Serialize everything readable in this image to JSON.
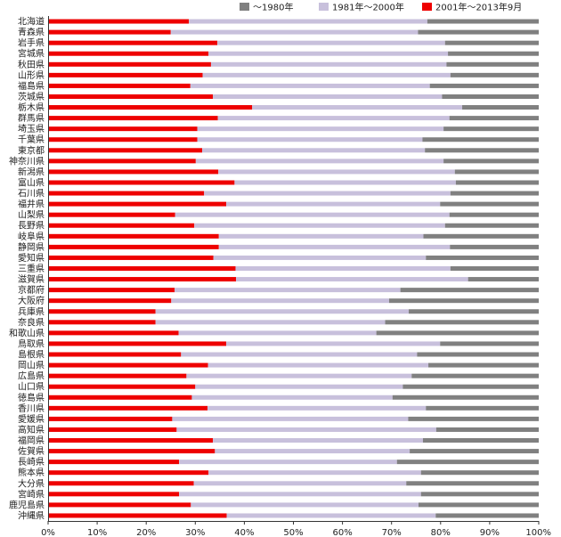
{
  "chart_data": {
    "type": "bar",
    "orientation": "horizontal",
    "stacked": true,
    "normalized_percent": true,
    "xlim": [
      0,
      100
    ],
    "x_ticks": [
      "0%",
      "10%",
      "20%",
      "30%",
      "40%",
      "50%",
      "60%",
      "70%",
      "80%",
      "90%",
      "100%"
    ],
    "grid": false,
    "legend_position": "top-right",
    "categories": [
      "北海道",
      "青森県",
      "岩手県",
      "宮城県",
      "秋田県",
      "山形県",
      "福島県",
      "茨城県",
      "栃木県",
      "群馬県",
      "埼玉県",
      "千葉県",
      "東京都",
      "神奈川県",
      "新潟県",
      "富山県",
      "石川県",
      "福井県",
      "山梨県",
      "長野県",
      "岐阜県",
      "静岡県",
      "愛知県",
      "三重県",
      "滋賀県",
      "京都府",
      "大阪府",
      "兵庫県",
      "奈良県",
      "和歌山県",
      "鳥取県",
      "島根県",
      "岡山県",
      "広島県",
      "山口県",
      "徳島県",
      "香川県",
      "愛媛県",
      "高知県",
      "福岡県",
      "佐賀県",
      "長崎県",
      "熊本県",
      "大分県",
      "宮崎県",
      "鹿児島県",
      "沖縄県"
    ],
    "series": [
      {
        "name": "2001年～2013年9月",
        "color": "#ee0000",
        "values": [
          28.7,
          25,
          34.5,
          32.7,
          33.2,
          31.5,
          29,
          33.6,
          41.6,
          34.6,
          30.4,
          30.4,
          31.4,
          30.1,
          34.7,
          38,
          31.8,
          36.3,
          25.9,
          29.8,
          34.8,
          34.8,
          33.7,
          38.2,
          38.3,
          25.8,
          25.1,
          21.9,
          21.9,
          26.6,
          36.3,
          27.1,
          32.6,
          28.2,
          30,
          29.3,
          32.5,
          25.3,
          26.2,
          33.6,
          34,
          26.7,
          32.7,
          29.7,
          26.7,
          29.1,
          36.4
        ]
      },
      {
        "name": "1981年～2000年",
        "color": "#c8c0dc",
        "values": [
          48.6,
          50.4,
          46.4,
          48.8,
          48,
          50.5,
          48.8,
          46.7,
          42.8,
          47.2,
          50.2,
          45.9,
          45.4,
          50.5,
          48.2,
          45.1,
          50.2,
          43.6,
          55.9,
          51.1,
          41.7,
          47.1,
          43.3,
          43.8,
          47.3,
          46,
          44.4,
          51.6,
          46.8,
          40.3,
          43.6,
          48.1,
          44.9,
          45.9,
          42.3,
          40.9,
          44.5,
          48.1,
          52.9,
          42.8,
          39.7,
          44.4,
          43.3,
          43.3,
          49.3,
          46.4,
          42.6
        ]
      },
      {
        "name": "～1980年",
        "color": "#808080",
        "values": [
          22.7,
          24.6,
          19.1,
          18.5,
          18.8,
          18,
          22.2,
          19.7,
          15.6,
          18.2,
          19.4,
          23.7,
          23.2,
          19.4,
          17.1,
          16.9,
          18,
          20.1,
          18.2,
          19.1,
          23.5,
          18.1,
          23,
          18,
          14.4,
          28.2,
          30.5,
          26.5,
          31.3,
          33.1,
          20.1,
          24.8,
          22.5,
          25.9,
          27.7,
          29.8,
          23,
          26.6,
          20.9,
          23.6,
          26.3,
          28.9,
          24,
          27,
          24,
          24.5,
          21
        ]
      }
    ]
  }
}
